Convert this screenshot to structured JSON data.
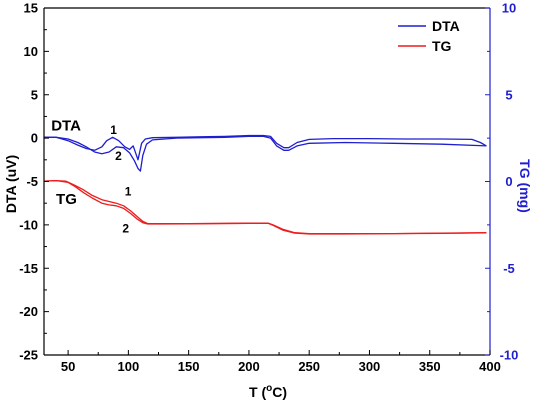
{
  "chart_data": {
    "type": "line",
    "x_axis": {
      "label": "T (",
      "label_sup": "o",
      "label_end": "C)",
      "range": [
        30,
        400
      ],
      "ticks": [
        50,
        100,
        150,
        200,
        250,
        300,
        350,
        400
      ],
      "tick_labels": [
        "50",
        "100",
        "150",
        "200",
        "250",
        "300",
        "350",
        "400"
      ]
    },
    "y_left": {
      "label": "DTA (uV)",
      "range": [
        -25,
        15
      ],
      "ticks": [
        15,
        10,
        5,
        0,
        -5,
        -10,
        -15,
        -20,
        -25
      ],
      "tick_labels": [
        "15",
        "10",
        "5",
        "0",
        "-5",
        "-10",
        "-15",
        "-20",
        "-25"
      ],
      "color": "#000000"
    },
    "y_right": {
      "label": "TG (mg)",
      "range": [
        -10,
        10
      ],
      "ticks": [
        10,
        5,
        0,
        -5,
        -10
      ],
      "tick_labels": [
        "10",
        "5",
        "0",
        "-5",
        "-10"
      ],
      "color": "#1f1fd0"
    },
    "grid": false,
    "legend": {
      "position": "top-right",
      "entries": [
        {
          "label": "DTA",
          "color": "#1f1fd0"
        },
        {
          "label": "TG",
          "color": "#ee1c1c"
        }
      ]
    },
    "annotations": [
      {
        "text": "DTA",
        "x": 36,
        "y": 0.9,
        "size": 15
      },
      {
        "text": "TG",
        "x": 40,
        "y": -7.6,
        "size": 15
      },
      {
        "text": "1",
        "x": 85,
        "y": 0.5,
        "size": 12
      },
      {
        "text": "2",
        "x": 89,
        "y": -2.5,
        "size": 12
      },
      {
        "text": "1",
        "x": 97,
        "y": -6.6,
        "size": 12
      },
      {
        "text": "2",
        "x": 95,
        "y": -10.9,
        "size": 12
      }
    ],
    "series": [
      {
        "label": "DTA curve 1",
        "axis": "left",
        "color": "#1f1fd0",
        "points": [
          [
            30,
            0.1
          ],
          [
            40,
            0.1
          ],
          [
            50,
            -0.3
          ],
          [
            58,
            -0.8
          ],
          [
            65,
            -1.2
          ],
          [
            72,
            -1.4
          ],
          [
            78,
            -1.0
          ],
          [
            82,
            -0.3
          ],
          [
            87,
            0.1
          ],
          [
            92,
            -0.3
          ],
          [
            97,
            -1.0
          ],
          [
            101,
            -1.3
          ],
          [
            104,
            -0.9
          ],
          [
            108,
            -2.5
          ],
          [
            111,
            -0.6
          ],
          [
            114,
            -0.1
          ],
          [
            120,
            0.05
          ],
          [
            140,
            0.1
          ],
          [
            160,
            0.15
          ],
          [
            180,
            0.2
          ],
          [
            200,
            0.3
          ],
          [
            212,
            0.3
          ],
          [
            218,
            0.2
          ],
          [
            223,
            -0.6
          ],
          [
            229,
            -1.1
          ],
          [
            233,
            -1.1
          ],
          [
            240,
            -0.5
          ],
          [
            250,
            -0.15
          ],
          [
            270,
            -0.05
          ],
          [
            300,
            -0.05
          ],
          [
            330,
            -0.1
          ],
          [
            360,
            -0.1
          ],
          [
            385,
            -0.15
          ],
          [
            392,
            -0.5
          ],
          [
            397,
            -0.9
          ]
        ]
      },
      {
        "label": "DTA curve 2",
        "axis": "left",
        "color": "#1f1fd0",
        "points": [
          [
            30,
            0.1
          ],
          [
            40,
            0.1
          ],
          [
            50,
            -0.1
          ],
          [
            58,
            -0.5
          ],
          [
            65,
            -1.0
          ],
          [
            72,
            -1.6
          ],
          [
            78,
            -1.8
          ],
          [
            84,
            -1.6
          ],
          [
            90,
            -1.0
          ],
          [
            96,
            -1.1
          ],
          [
            101,
            -1.7
          ],
          [
            105,
            -2.6
          ],
          [
            108,
            -3.5
          ],
          [
            110,
            -3.8
          ],
          [
            112,
            -2.0
          ],
          [
            115,
            -0.7
          ],
          [
            120,
            -0.2
          ],
          [
            140,
            0.0
          ],
          [
            160,
            0.05
          ],
          [
            180,
            0.1
          ],
          [
            200,
            0.2
          ],
          [
            212,
            0.2
          ],
          [
            218,
            0.0
          ],
          [
            223,
            -0.9
          ],
          [
            229,
            -1.4
          ],
          [
            233,
            -1.4
          ],
          [
            240,
            -0.9
          ],
          [
            250,
            -0.6
          ],
          [
            280,
            -0.5
          ],
          [
            320,
            -0.6
          ],
          [
            360,
            -0.7
          ],
          [
            397,
            -0.9
          ]
        ]
      },
      {
        "label": "TG curve 1",
        "axis": "left",
        "color": "#ee1c1c",
        "points": [
          [
            30,
            -4.95
          ],
          [
            40,
            -4.9
          ],
          [
            48,
            -4.95
          ],
          [
            55,
            -5.4
          ],
          [
            62,
            -5.9
          ],
          [
            70,
            -6.6
          ],
          [
            78,
            -7.1
          ],
          [
            84,
            -7.3
          ],
          [
            90,
            -7.5
          ],
          [
            96,
            -7.8
          ],
          [
            102,
            -8.4
          ],
          [
            107,
            -9.0
          ],
          [
            112,
            -9.6
          ],
          [
            116,
            -9.85
          ],
          [
            125,
            -9.85
          ],
          [
            150,
            -9.85
          ],
          [
            180,
            -9.82
          ],
          [
            200,
            -9.8
          ],
          [
            216,
            -9.8
          ],
          [
            220,
            -10.0
          ],
          [
            228,
            -10.5
          ],
          [
            238,
            -10.9
          ],
          [
            250,
            -11.0
          ],
          [
            280,
            -11.0
          ],
          [
            320,
            -11.0
          ],
          [
            360,
            -10.95
          ],
          [
            397,
            -10.9
          ]
        ]
      },
      {
        "label": "TG curve 2",
        "axis": "left",
        "color": "#ee1c1c",
        "points": [
          [
            30,
            -4.95
          ],
          [
            40,
            -4.9
          ],
          [
            50,
            -5.1
          ],
          [
            56,
            -5.6
          ],
          [
            63,
            -6.3
          ],
          [
            70,
            -6.9
          ],
          [
            78,
            -7.5
          ],
          [
            84,
            -7.7
          ],
          [
            90,
            -7.8
          ],
          [
            96,
            -8.1
          ],
          [
            102,
            -8.7
          ],
          [
            107,
            -9.3
          ],
          [
            112,
            -9.75
          ],
          [
            116,
            -9.9
          ],
          [
            125,
            -9.9
          ],
          [
            150,
            -9.88
          ],
          [
            180,
            -9.85
          ],
          [
            200,
            -9.82
          ],
          [
            216,
            -9.82
          ],
          [
            220,
            -10.05
          ],
          [
            228,
            -10.6
          ],
          [
            238,
            -10.95
          ],
          [
            250,
            -11.05
          ],
          [
            280,
            -11.05
          ],
          [
            320,
            -11.0
          ],
          [
            360,
            -10.97
          ],
          [
            397,
            -10.92
          ]
        ]
      }
    ]
  }
}
